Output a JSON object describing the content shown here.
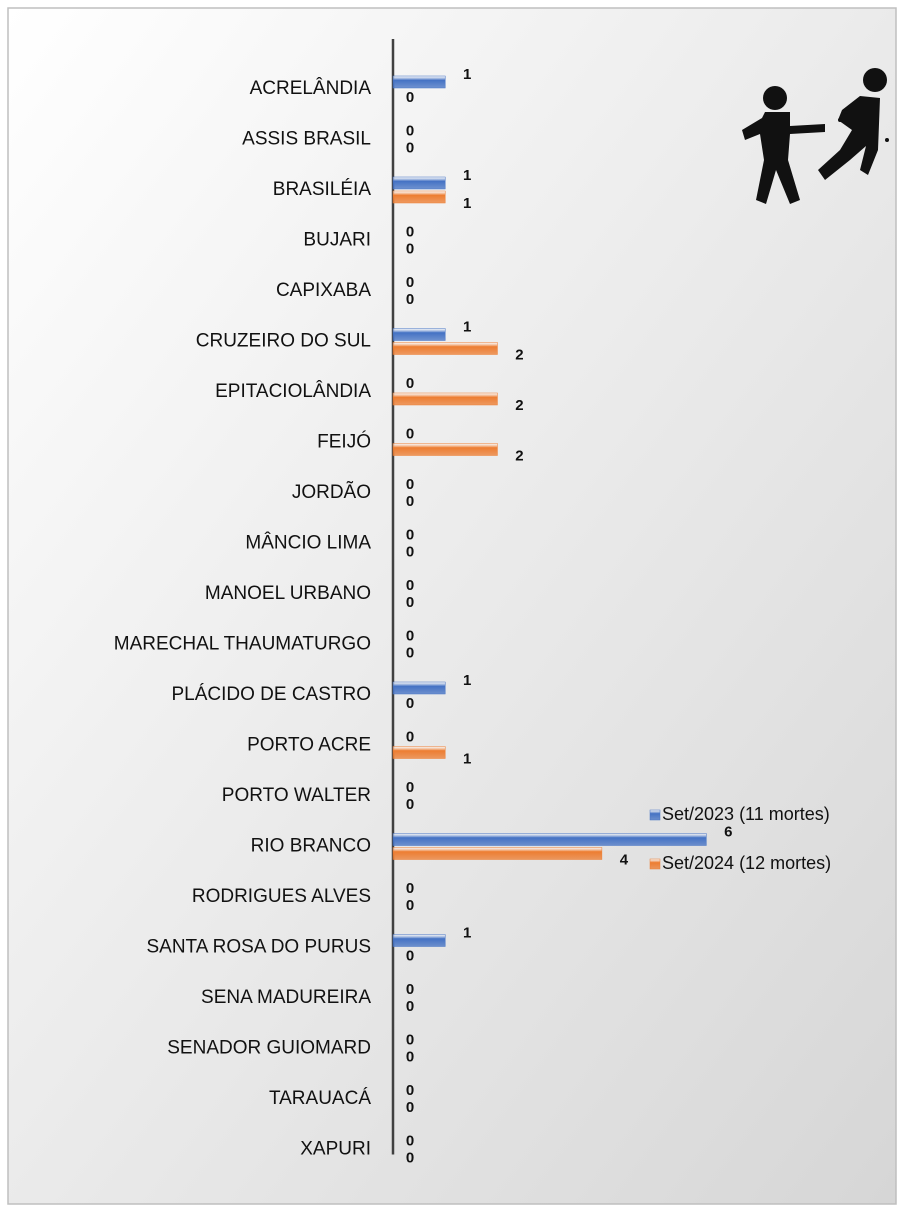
{
  "chart_data": {
    "type": "barh",
    "categories": [
      "ACRELÂNDIA",
      "ASSIS BRASIL",
      "BRASILÉIA",
      "BUJARI",
      "CAPIXABA",
      "CRUZEIRO DO SUL",
      "EPITACIOLÂNDIA",
      "FEIJÓ",
      "JORDÃO",
      "MÂNCIO LIMA",
      "MANOEL URBANO",
      "MARECHAL THAUMATURGO",
      "PLÁCIDO DE CASTRO",
      "PORTO ACRE",
      "PORTO WALTER",
      "RIO BRANCO",
      "RODRIGUES ALVES",
      "SANTA ROSA DO PURUS",
      "SENA MADUREIRA",
      "SENADOR GUIOMARD",
      "TARAUACÁ",
      "XAPURI"
    ],
    "series": [
      {
        "name": "Set/2023 (11 mortes)",
        "color": "#4472c4",
        "values": [
          1,
          0,
          1,
          0,
          0,
          1,
          0,
          0,
          0,
          0,
          0,
          0,
          1,
          0,
          0,
          6,
          0,
          1,
          0,
          0,
          0,
          0
        ]
      },
      {
        "name": "Set/2024 (12 mortes)",
        "color": "#ed7d31",
        "values": [
          0,
          0,
          1,
          0,
          0,
          2,
          2,
          2,
          0,
          0,
          0,
          0,
          0,
          1,
          0,
          4,
          0,
          0,
          0,
          0,
          0,
          0
        ]
      }
    ],
    "xlim": [
      0,
      9
    ],
    "legend": "right"
  }
}
